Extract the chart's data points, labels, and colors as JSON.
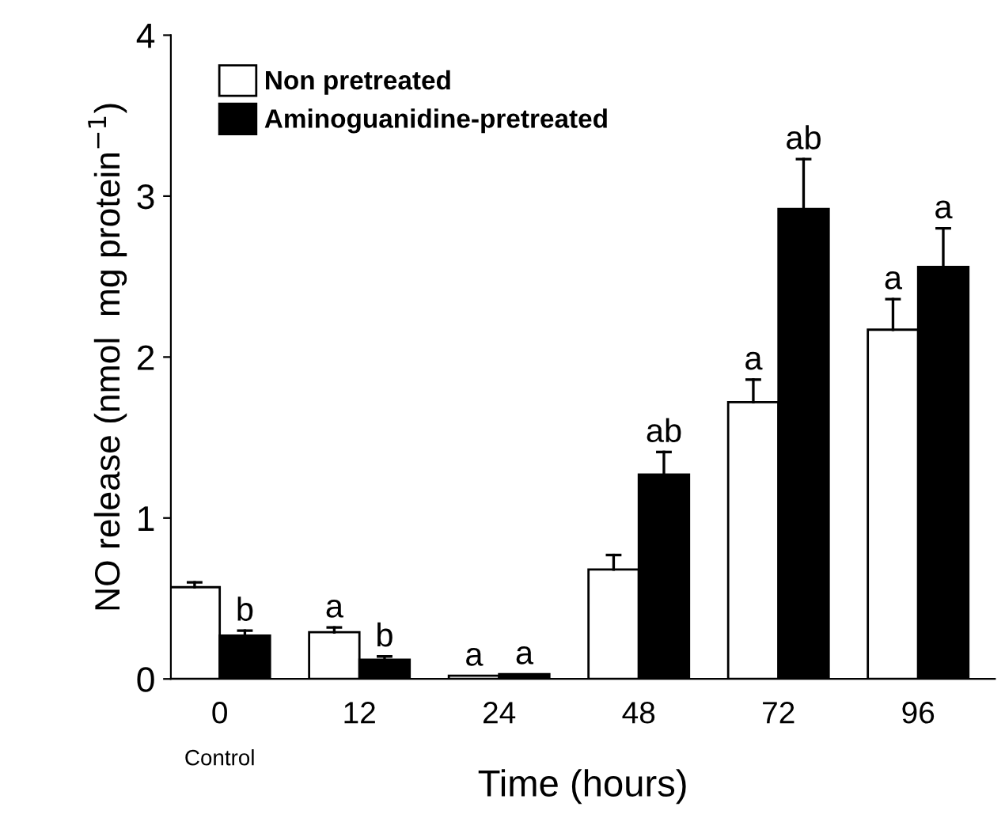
{
  "chart_data": {
    "type": "bar",
    "xlabel": "Time (hours)",
    "ylabel": "NO release (nmol  mg protein$^{−1}$)",
    "categories": [
      "0",
      "12",
      "24",
      "48",
      "72",
      "96"
    ],
    "series": [
      {
        "name": "Non pretreated",
        "color": "#ffffff",
        "values": [
          0.57,
          0.29,
          0.02,
          0.68,
          1.72,
          2.17
        ],
        "errors": [
          [
            0.57,
            0.6
          ],
          [
            0.29,
            0.32
          ],
          null,
          [
            0.68,
            0.77
          ],
          [
            1.72,
            1.86
          ],
          [
            2.17,
            2.36
          ]
        ],
        "value_labels": [
          null,
          "a",
          "a",
          null,
          "a",
          "a"
        ]
      },
      {
        "name": "Aminoguanidine-pretreated",
        "color": "#000000",
        "values": [
          0.27,
          0.12,
          0.03,
          1.27,
          2.92,
          2.56
        ],
        "errors": [
          [
            0.27,
            0.3
          ],
          [
            0.12,
            0.14
          ],
          null,
          [
            1.27,
            1.41
          ],
          [
            2.92,
            3.23
          ],
          [
            2.56,
            2.8
          ]
        ],
        "value_labels": [
          "b",
          "b",
          "a",
          "ab",
          "ab",
          "a"
        ]
      }
    ],
    "ylim": [
      0,
      4
    ],
    "yticks": [
      0,
      1,
      2,
      3,
      4
    ],
    "legend": "top left",
    "grid": false,
    "annotations": [
      "Control"
    ]
  }
}
